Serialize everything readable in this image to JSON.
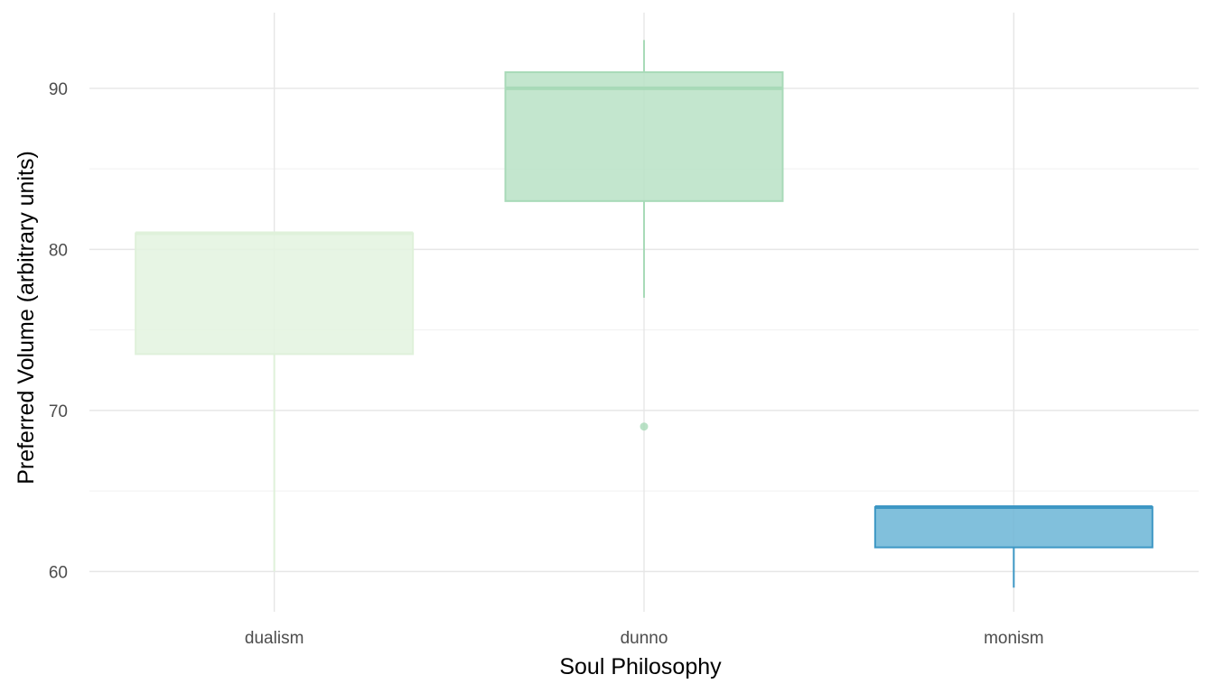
{
  "chart_data": {
    "type": "boxplot",
    "xlabel": "Soul Philosophy",
    "ylabel": "Preferred Volume (arbitrary units)",
    "ylim": [
      57.5,
      94.7
    ],
    "yticks": [
      60,
      70,
      80,
      90
    ],
    "categories": [
      "dualism",
      "dunno",
      "monism"
    ],
    "grid": true,
    "legend": "none",
    "boxes": [
      {
        "category": "dualism",
        "whisker_low": 60,
        "q1": 73.5,
        "median": 81,
        "q3": 81,
        "whisker_high": 81,
        "outliers": [],
        "fill": "#e3f3df",
        "stroke": "#dff1da"
      },
      {
        "category": "dunno",
        "whisker_low": 77,
        "q1": 83,
        "median": 90,
        "q3": 91,
        "whisker_high": 93,
        "outliers": [
          69
        ],
        "fill": "#b9e2c6",
        "stroke": "#a8dab8"
      },
      {
        "category": "monism",
        "whisker_low": 59,
        "q1": 61.5,
        "median": 64,
        "q3": 64,
        "whisker_high": 64,
        "outliers": [],
        "fill": "#6bb5d6",
        "stroke": "#3d97c4"
      }
    ]
  }
}
